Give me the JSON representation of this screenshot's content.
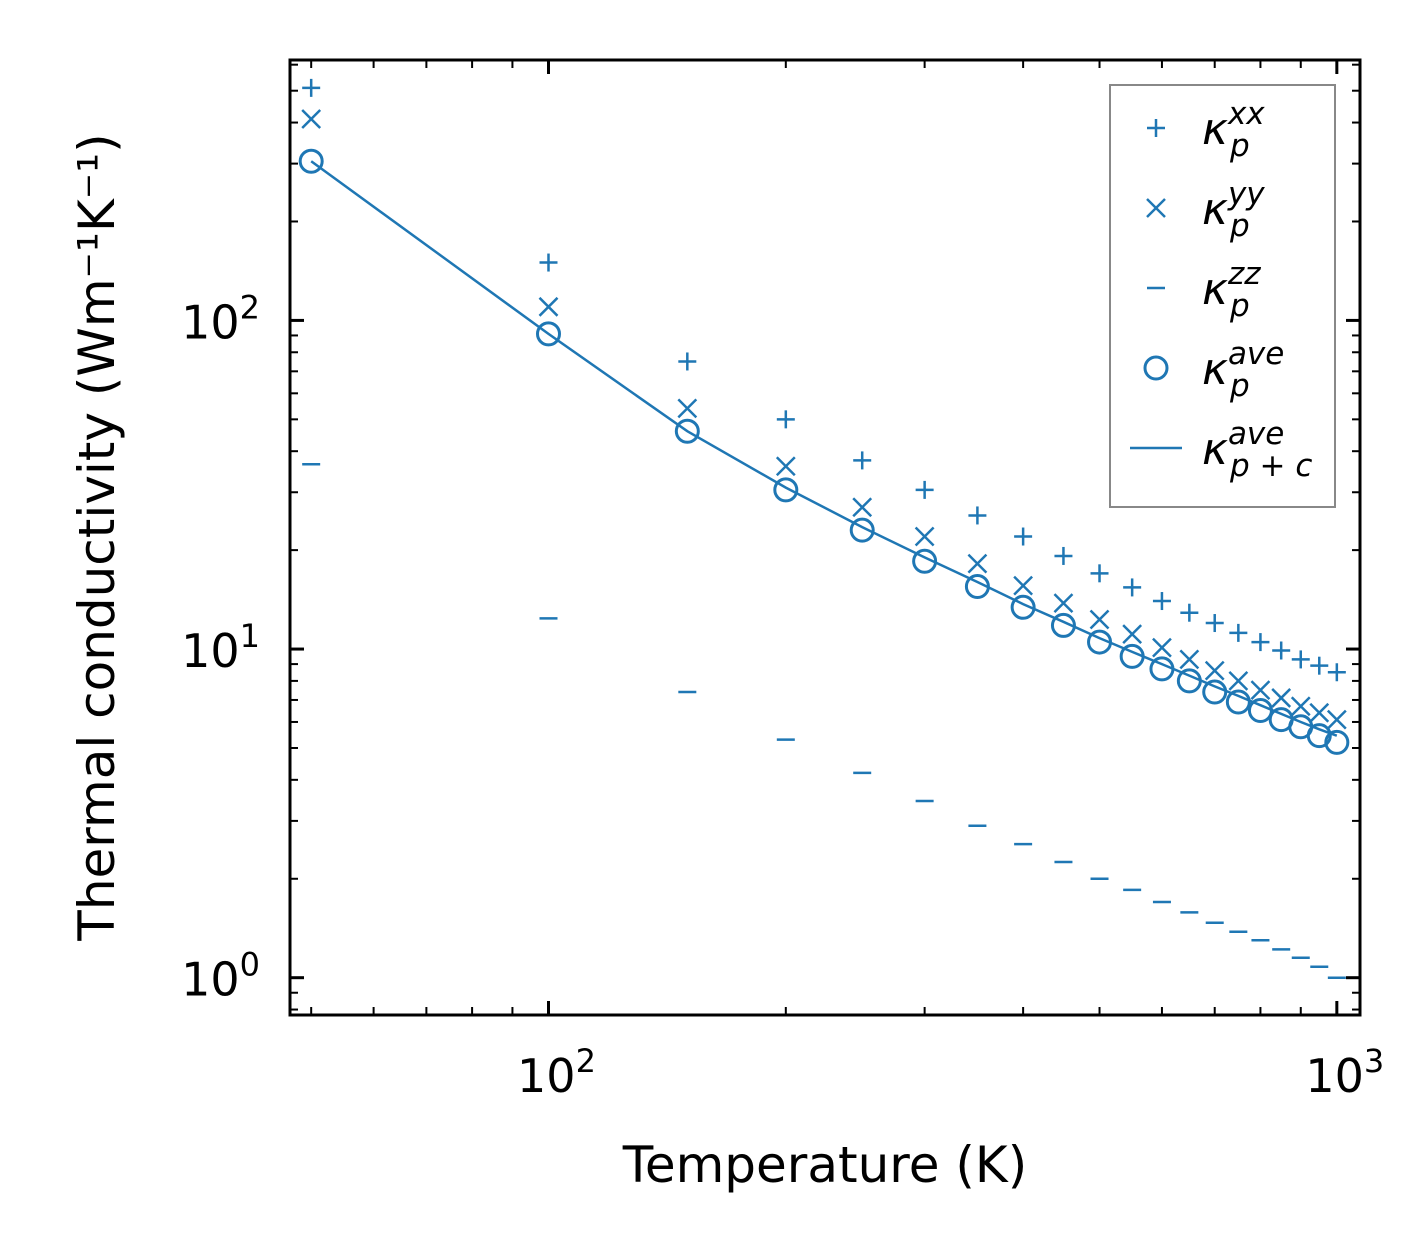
{
  "chart_data": {
    "type": "scatter",
    "xscale": "log",
    "yscale": "log",
    "xlim": [
      47,
      1070
    ],
    "ylim": [
      0.77,
      620
    ],
    "xlabel": "Temperature (K)",
    "ylabel": "Thermal conductivity (Wm⁻¹K⁻¹)",
    "x_ticks": [
      {
        "base": "10",
        "exp": "2"
      },
      {
        "base": "10",
        "exp": "3"
      }
    ],
    "y_ticks": [
      {
        "base": "10",
        "exp": "0"
      },
      {
        "base": "10",
        "exp": "1"
      },
      {
        "base": "10",
        "exp": "2"
      }
    ],
    "color": "#1f77b4",
    "x": [
      50,
      100,
      150,
      200,
      250,
      300,
      350,
      400,
      450,
      500,
      550,
      600,
      650,
      700,
      750,
      800,
      850,
      900,
      950,
      1000
    ],
    "series": [
      {
        "name": "kxx",
        "marker": "plus",
        "values": [
          510,
          150,
          75,
          50,
          37.5,
          30.5,
          25.5,
          22,
          19.2,
          17,
          15.4,
          14,
          12.9,
          12,
          11.2,
          10.5,
          9.9,
          9.3,
          8.9,
          8.5
        ]
      },
      {
        "name": "kyy",
        "marker": "x",
        "values": [
          410,
          110,
          54,
          36,
          27,
          22,
          18.2,
          15.6,
          13.8,
          12.3,
          11.1,
          10.1,
          9.3,
          8.6,
          8,
          7.5,
          7.1,
          6.7,
          6.4,
          6.1
        ]
      },
      {
        "name": "kzz",
        "marker": "hline",
        "values": [
          36.5,
          12.4,
          7.4,
          5.3,
          4.2,
          3.45,
          2.9,
          2.55,
          2.25,
          2.0,
          1.85,
          1.7,
          1.58,
          1.47,
          1.38,
          1.3,
          1.22,
          1.15,
          1.08,
          1.0
        ]
      },
      {
        "name": "kave",
        "marker": "circle",
        "values": [
          305,
          91,
          46,
          30.5,
          23,
          18.5,
          15.5,
          13.4,
          11.8,
          10.5,
          9.5,
          8.7,
          8.0,
          7.4,
          6.9,
          6.5,
          6.1,
          5.8,
          5.45,
          5.2
        ]
      },
      {
        "name": "kpc",
        "marker": "line",
        "values": [
          305,
          91,
          46,
          31,
          23.5,
          19,
          16,
          13.7,
          12.1,
          10.8,
          9.8,
          9.0,
          8.3,
          7.7,
          7.2,
          6.75,
          6.35,
          6.0,
          5.7,
          5.45
        ]
      }
    ],
    "legend": {
      "position": "top-right",
      "entries": [
        {
          "symbol": "κ",
          "sub": "p",
          "sup": "xx"
        },
        {
          "symbol": "κ",
          "sub": "p",
          "sup": "yy"
        },
        {
          "symbol": "κ",
          "sub": "p",
          "sup": "zz"
        },
        {
          "symbol": "κ",
          "sub": "p",
          "sup": "ave"
        },
        {
          "symbol": "κ",
          "sub": "p + c",
          "sup": "ave"
        }
      ]
    }
  }
}
